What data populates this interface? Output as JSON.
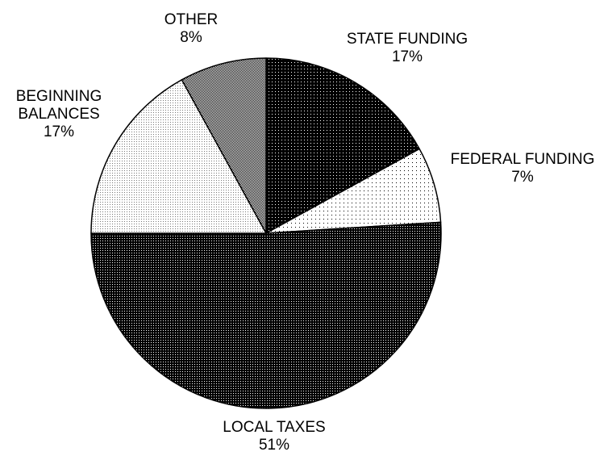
{
  "chart_data": {
    "type": "pie",
    "title": "",
    "start_angle_deg": 0,
    "direction": "clockwise",
    "slices": [
      {
        "key": "state-funding",
        "label_lines": [
          "STATE FUNDING"
        ],
        "value": 17,
        "value_label": "17%",
        "fill_pattern": "dense-white-dots-on-black"
      },
      {
        "key": "federal-funding",
        "label_lines": [
          "FEDERAL FUNDING"
        ],
        "value": 7,
        "value_label": "7%",
        "fill_pattern": "sparse-black-dots-on-white"
      },
      {
        "key": "local-taxes",
        "label_lines": [
          "LOCAL TAXES"
        ],
        "value": 51,
        "value_label": "51%",
        "fill_pattern": "dense-black-checker"
      },
      {
        "key": "beginning-balances",
        "label_lines": [
          "BEGINNING",
          "BALANCES"
        ],
        "value": 17,
        "value_label": "17%",
        "fill_pattern": "light-grey-dots"
      },
      {
        "key": "other",
        "label_lines": [
          "OTHER"
        ],
        "value": 8,
        "value_label": "8%",
        "fill_pattern": "medium-grey-checker"
      }
    ]
  }
}
